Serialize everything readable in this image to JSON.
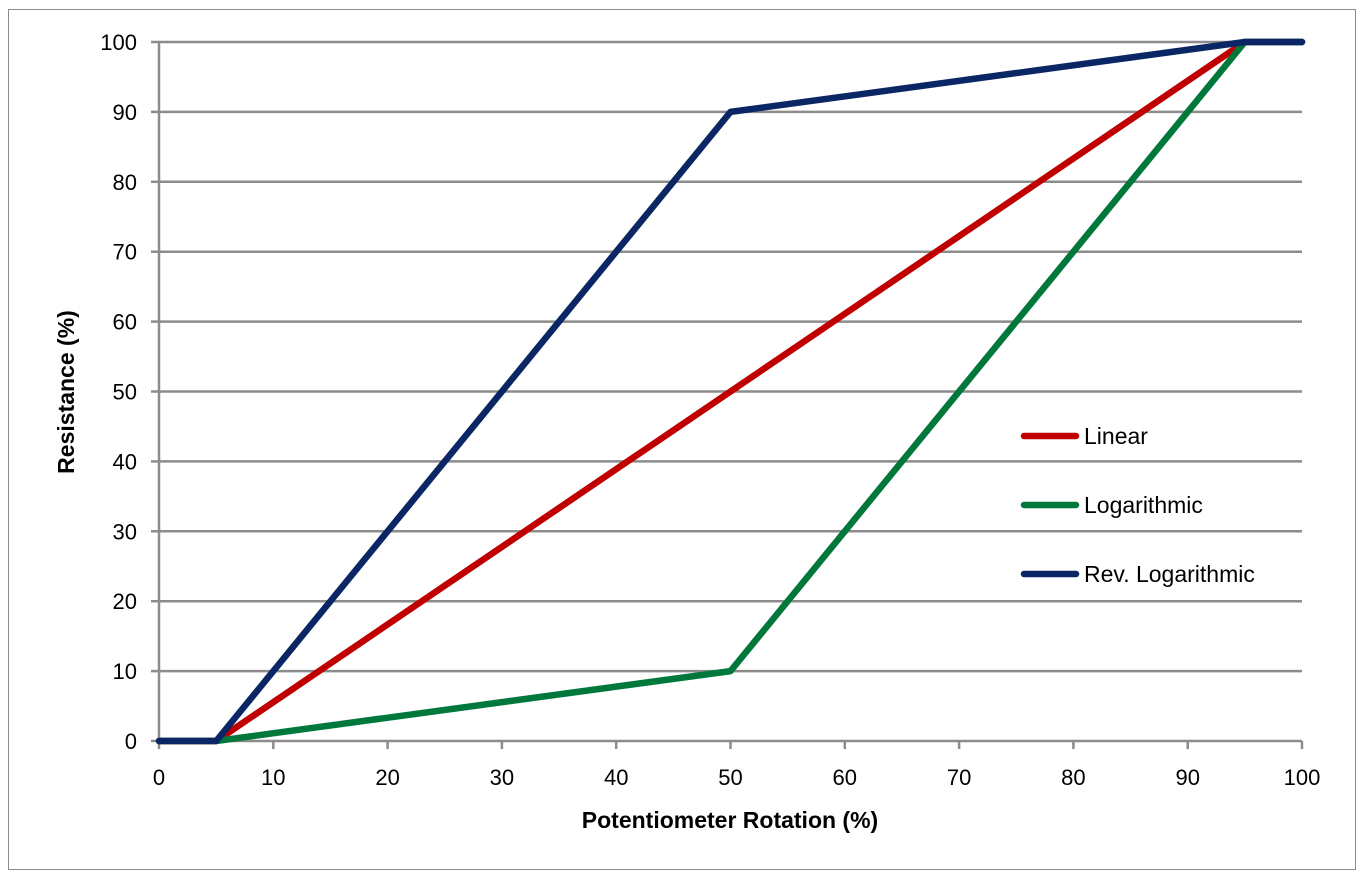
{
  "chart_data": {
    "type": "line",
    "title": "",
    "xlabel": "Potentiometer Rotation (%)",
    "ylabel": "Resistance (%)",
    "xlim": [
      0,
      100
    ],
    "ylim": [
      0,
      100
    ],
    "xticks": [
      0,
      10,
      20,
      30,
      40,
      50,
      60,
      70,
      80,
      90,
      100
    ],
    "yticks": [
      0,
      10,
      20,
      30,
      40,
      50,
      60,
      70,
      80,
      90,
      100
    ],
    "grid": "horizontal",
    "legend_position": "right",
    "series": [
      {
        "name": "Linear",
        "color": "#c00000",
        "x": [
          0,
          5,
          95,
          100
        ],
        "y": [
          0,
          0,
          100,
          100
        ]
      },
      {
        "name": "Logarithmic",
        "color": "#00783c",
        "x": [
          0,
          5,
          50,
          95,
          100
        ],
        "y": [
          0,
          0,
          10,
          100,
          100
        ]
      },
      {
        "name": "Rev. Logarithmic",
        "color": "#0a2664",
        "x": [
          0,
          5,
          50,
          95,
          100
        ],
        "y": [
          0,
          0,
          90,
          100,
          100
        ]
      }
    ]
  }
}
